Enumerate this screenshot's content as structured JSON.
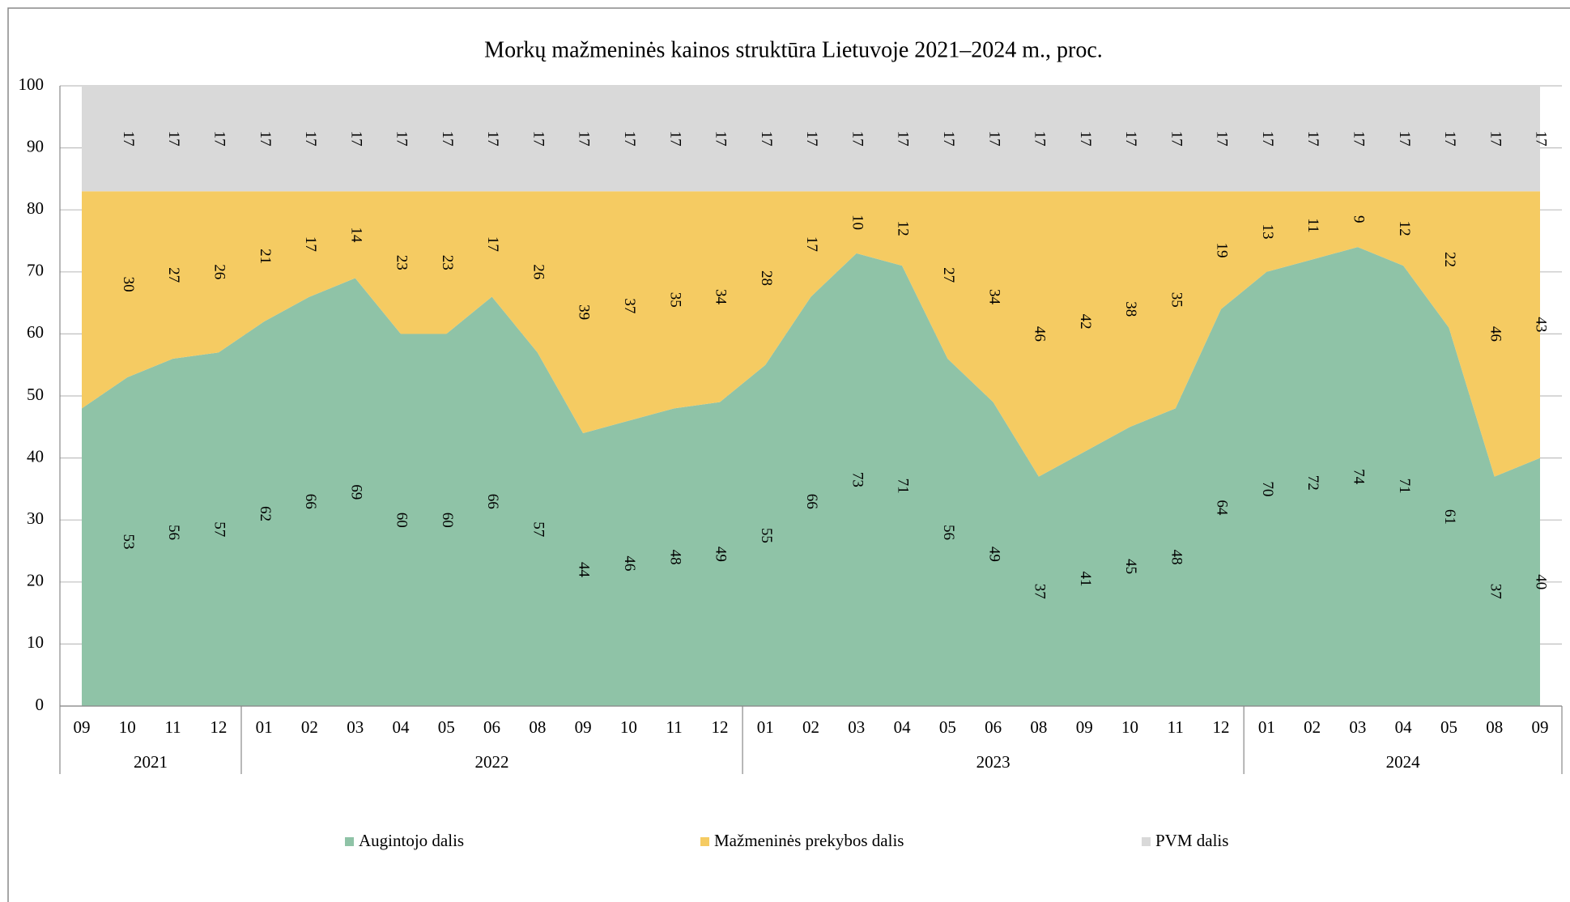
{
  "chart_data": {
    "type": "stacked_area",
    "title": "Morkų mažmeninės kainos struktūra Lietuvoje 2021–2024 m., proc.",
    "categories": [
      "09",
      "10",
      "11",
      "12",
      "01",
      "02",
      "03",
      "04",
      "05",
      "06",
      "08",
      "09",
      "10",
      "11",
      "12",
      "01",
      "02",
      "03",
      "04",
      "05",
      "06",
      "08",
      "09",
      "10",
      "11",
      "12",
      "01",
      "02",
      "03",
      "04",
      "05",
      "08",
      "09"
    ],
    "category_groups": [
      "2021",
      null,
      null,
      null,
      "2022",
      null,
      null,
      null,
      null,
      null,
      null,
      null,
      null,
      null,
      null,
      "2023",
      null,
      null,
      null,
      null,
      null,
      null,
      null,
      null,
      null,
      null,
      "2024",
      null,
      null,
      null,
      null,
      null,
      null
    ],
    "series": [
      {
        "name": "Augintojo dalis",
        "color": "#8fc3a7",
        "values": [
          48,
          53,
          56,
          57,
          62,
          66,
          69,
          60,
          60,
          66,
          57,
          44,
          46,
          48,
          49,
          55,
          66,
          73,
          71,
          56,
          49,
          37,
          41,
          45,
          48,
          64,
          70,
          72,
          74,
          71,
          61,
          37,
          40
        ],
        "value_labels": [
          null,
          "53",
          "56",
          "57",
          "62",
          "66",
          "69",
          "60",
          "60",
          "66",
          "57",
          "44",
          "46",
          "48",
          "49",
          "55",
          "66",
          "73",
          "71",
          "56",
          "49",
          "37",
          "41",
          "45",
          "48",
          "64",
          "70",
          "72",
          "74",
          "71",
          "61",
          "37",
          "40"
        ]
      },
      {
        "name": "Mažmeninės prekybos dalis",
        "color": "#f5cb62",
        "values": [
          35,
          30,
          27,
          26,
          21,
          17,
          14,
          23,
          23,
          17,
          26,
          39,
          37,
          35,
          34,
          28,
          17,
          10,
          12,
          27,
          34,
          46,
          42,
          38,
          35,
          19,
          13,
          11,
          9,
          12,
          22,
          46,
          43
        ],
        "value_labels": [
          null,
          "30",
          "27",
          "26",
          "21",
          "17",
          "14",
          "23",
          "23",
          "17",
          "26",
          "39",
          "37",
          "35",
          "34",
          "28",
          "17",
          "10",
          "12",
          "27",
          "34",
          "46",
          "42",
          "38",
          "35",
          "19",
          "13",
          "11",
          "9",
          "12",
          "22",
          "46",
          "43"
        ]
      },
      {
        "name": "PVM dalis",
        "color": "#d9d9d9",
        "values": [
          17,
          17,
          17,
          17,
          17,
          17,
          17,
          17,
          17,
          17,
          17,
          17,
          17,
          17,
          17,
          17,
          17,
          17,
          17,
          17,
          17,
          17,
          17,
          17,
          17,
          17,
          17,
          17,
          17,
          17,
          17,
          17,
          17
        ],
        "value_labels": [
          null,
          "17",
          "17",
          "17",
          "17",
          "17",
          "17",
          "17",
          "17",
          "17",
          "17",
          "17",
          "17",
          "17",
          "17",
          "17",
          "17",
          "17",
          "17",
          "17",
          "17",
          "17",
          "17",
          "17",
          "17",
          "17",
          "17",
          "17",
          "17",
          "17",
          "17",
          "17",
          "17"
        ]
      }
    ],
    "ylim": [
      0,
      100
    ],
    "yticks": [
      0,
      10,
      20,
      30,
      40,
      50,
      60,
      70,
      80,
      90,
      100
    ],
    "grid": true,
    "legend": "bottom"
  }
}
